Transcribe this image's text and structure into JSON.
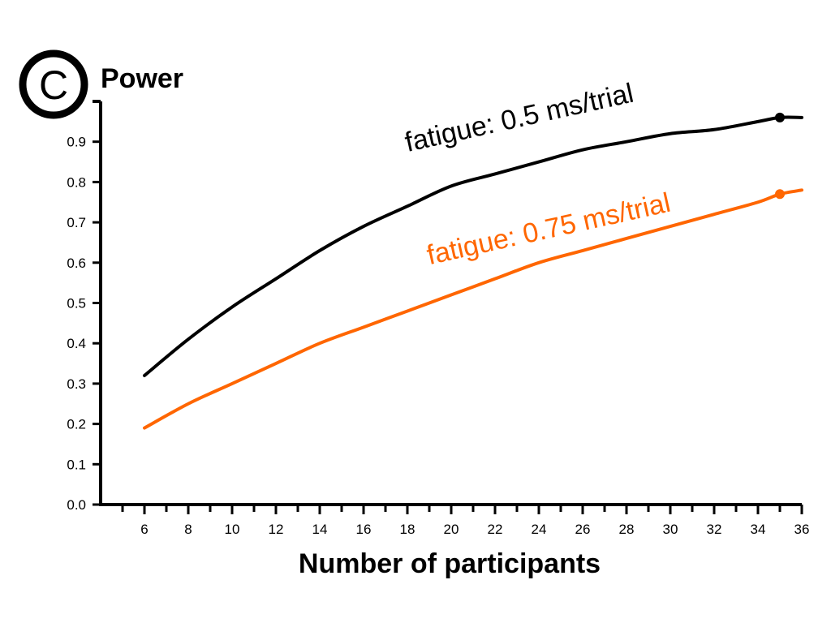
{
  "panel": {
    "letter": "C"
  },
  "chart_data": {
    "type": "line",
    "ylabel": "Power",
    "xlabel": "Number of participants",
    "xlim": [
      4,
      36
    ],
    "ylim": [
      0,
      1
    ],
    "x_ticks": [
      6,
      8,
      10,
      12,
      14,
      16,
      18,
      20,
      22,
      24,
      26,
      28,
      30,
      32,
      34,
      36
    ],
    "y_ticks": [
      "0.0",
      "0.1",
      "0.2",
      "0.3",
      "0.4",
      "0.5",
      "0.6",
      "0.7",
      "0.8",
      "0.9"
    ],
    "grid": false,
    "series": [
      {
        "name": "fatigue: 0.5 ms/trial",
        "color": "#000000",
        "x": [
          6,
          8,
          10,
          12,
          14,
          16,
          18,
          20,
          22,
          24,
          26,
          28,
          30,
          32,
          34,
          35,
          36
        ],
        "y": [
          0.32,
          0.41,
          0.49,
          0.56,
          0.63,
          0.69,
          0.74,
          0.79,
          0.82,
          0.85,
          0.88,
          0.9,
          0.92,
          0.93,
          0.95,
          0.96,
          0.96
        ],
        "highlight": {
          "x": 35,
          "y": 0.96
        }
      },
      {
        "name": "fatigue: 0.75 ms/trial",
        "color": "#ff6600",
        "x": [
          6,
          8,
          10,
          12,
          14,
          16,
          18,
          20,
          22,
          24,
          26,
          28,
          30,
          32,
          34,
          35,
          36
        ],
        "y": [
          0.19,
          0.25,
          0.3,
          0.35,
          0.4,
          0.44,
          0.48,
          0.52,
          0.56,
          0.6,
          0.63,
          0.66,
          0.69,
          0.72,
          0.75,
          0.77,
          0.78
        ],
        "highlight": {
          "x": 35,
          "y": 0.77
        }
      }
    ]
  }
}
